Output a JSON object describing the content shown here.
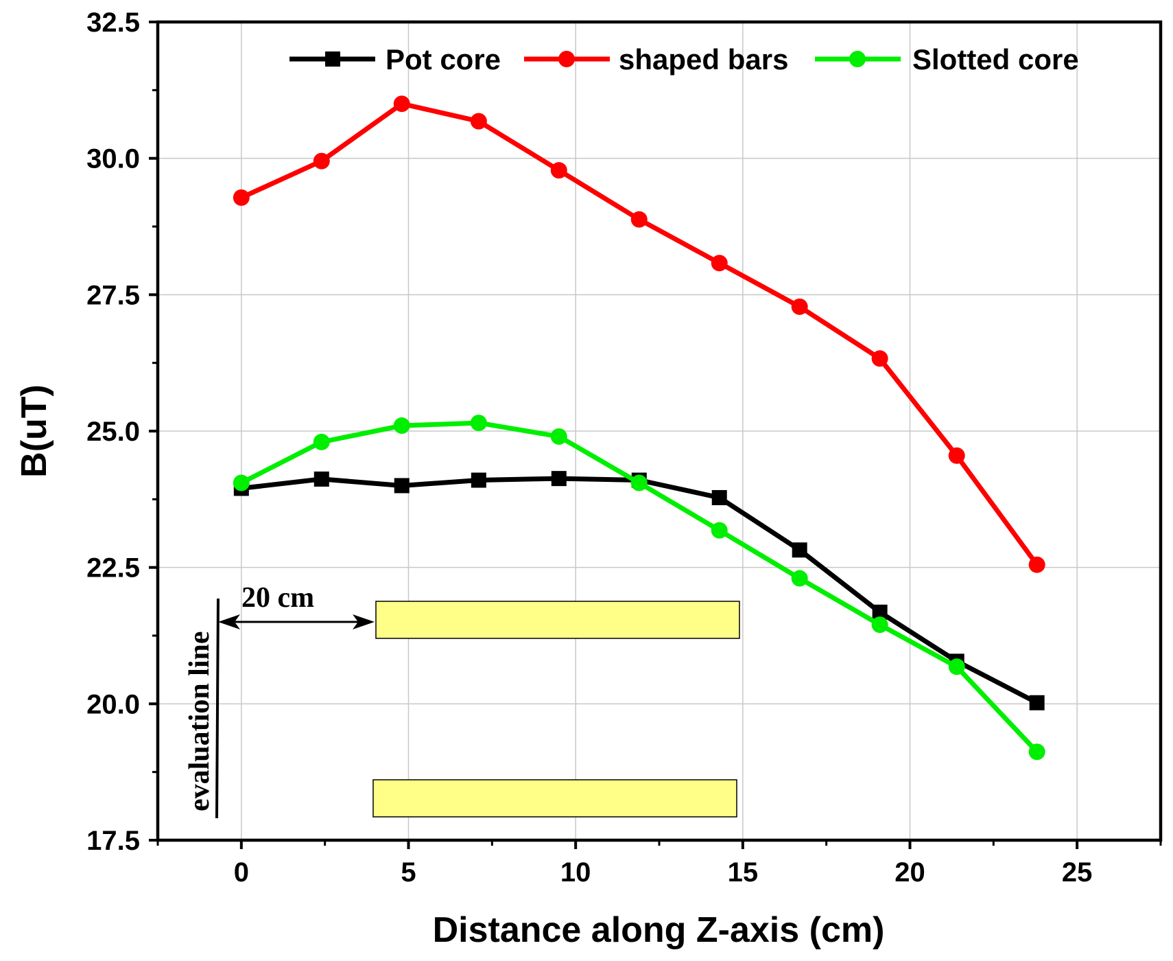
{
  "chart_data": {
    "type": "line",
    "title": "",
    "xlabel": "Distance along Z-axis (cm)",
    "ylabel": "B(uT)",
    "xlim": [
      -2.5,
      27.5
    ],
    "ylim": [
      17.5,
      32.5
    ],
    "xticks": [
      0,
      5,
      10,
      15,
      20,
      25
    ],
    "xtick_labels": [
      "0",
      "5",
      "10",
      "15",
      "20",
      "25"
    ],
    "yticks": [
      17.5,
      20.0,
      22.5,
      25.0,
      27.5,
      30.0,
      32.5
    ],
    "ytick_labels": [
      "17.5",
      "20.0",
      "22.5",
      "25.0",
      "27.5",
      "30.0",
      "32.5"
    ],
    "grid": true,
    "legend_position": "top",
    "x": [
      0,
      2.4,
      4.8,
      7.1,
      9.5,
      11.9,
      14.3,
      16.7,
      19.1,
      21.4,
      23.8
    ],
    "series": [
      {
        "name": "Pot core",
        "color": "#000000",
        "marker": "square",
        "values": [
          23.95,
          24.12,
          24.0,
          24.1,
          24.13,
          24.1,
          23.78,
          22.82,
          21.68,
          20.78,
          20.02
        ]
      },
      {
        "name": "shaped bars",
        "color": "#ff0000",
        "marker": "circle",
        "values": [
          29.28,
          29.95,
          31.0,
          30.68,
          29.78,
          28.88,
          28.08,
          27.28,
          26.33,
          24.55,
          22.55
        ]
      },
      {
        "name": "Slotted core",
        "color": "#00ee00",
        "marker": "circle",
        "values": [
          24.05,
          24.8,
          25.1,
          25.15,
          24.9,
          24.05,
          23.18,
          22.3,
          21.45,
          20.68,
          19.12
        ]
      }
    ],
    "annotations": {
      "distance_label": "20 cm",
      "evaluation_label": "evaluation line",
      "bar_fill": "#ffff88"
    }
  }
}
